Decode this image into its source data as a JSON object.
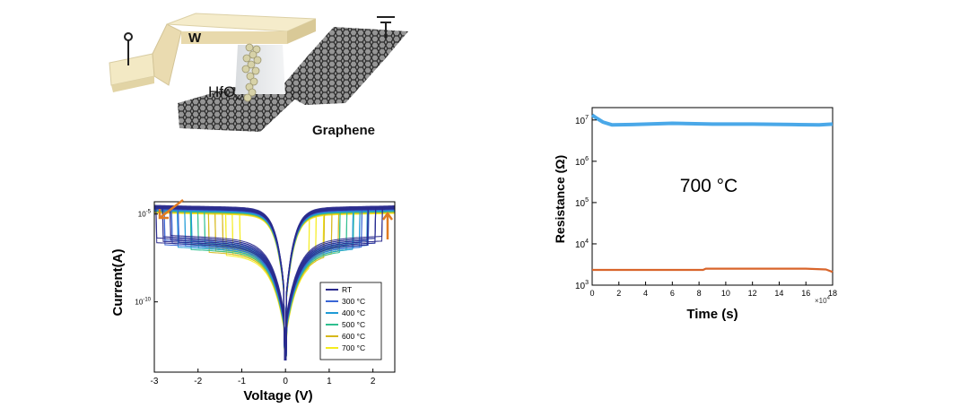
{
  "device": {
    "electrode_label": "W",
    "oxide_label": "HfO",
    "oxide_subscript": "x",
    "channel_label": "Graphene"
  },
  "chart_data": [
    {
      "type": "line",
      "xlabel": "Voltage (V)",
      "ylabel": "Current(A)",
      "xlim": [
        -3,
        2.5
      ],
      "ylim": [
        -14,
        -4.3
      ],
      "y_scale": "log",
      "x_ticks": [
        -3,
        -2,
        -1,
        0,
        1,
        2
      ],
      "y_ticks": [
        {
          "base": "10",
          "exp": "-5",
          "value": -5
        },
        {
          "base": "10",
          "exp": "-10",
          "value": -10
        }
      ],
      "legend": {
        "position": "bottom-right"
      },
      "series": [
        {
          "name": "RT",
          "color": "#2a2a8c",
          "low_log": -6.4,
          "high_log": -4.6,
          "neg_set": -2.8,
          "pos_set": 2.05
        },
        {
          "name": "300 °C",
          "color": "#3a66d6",
          "low_log": -6.5,
          "high_log": -4.65,
          "neg_set": -2.6,
          "pos_set": 1.9
        },
        {
          "name": "400 °C",
          "color": "#1f9bd6",
          "low_log": -6.6,
          "high_log": -4.7,
          "neg_set": -2.3,
          "pos_set": 1.7
        },
        {
          "name": "500 °C",
          "color": "#2fbf8f",
          "low_log": -6.7,
          "high_log": -4.75,
          "neg_set": -2.0,
          "pos_set": 1.4
        },
        {
          "name": "600 °C",
          "color": "#d6b81a",
          "low_log": -6.8,
          "high_log": -4.8,
          "neg_set": -1.6,
          "pos_set": 1.05
        },
        {
          "name": "700 °C",
          "color": "#f5ec1e",
          "low_log": -6.9,
          "high_log": -4.85,
          "neg_set": -1.2,
          "pos_set": 0.7
        }
      ]
    },
    {
      "type": "line",
      "xlabel": "Time (s)",
      "ylabel": "Resistance (Ω)",
      "annotation": "700 °C",
      "x_multiplier": {
        "base": "×10",
        "exp": "4"
      },
      "xlim": [
        0,
        18
      ],
      "ylim": [
        3,
        7.3
      ],
      "y_scale": "log",
      "x_ticks": [
        0,
        2,
        4,
        6,
        8,
        10,
        12,
        14,
        16,
        18
      ],
      "y_ticks": [
        {
          "base": "10",
          "exp": "3",
          "value": 3
        },
        {
          "base": "10",
          "exp": "4",
          "value": 4
        },
        {
          "base": "10",
          "exp": "5",
          "value": 5
        },
        {
          "base": "10",
          "exp": "6",
          "value": 6
        },
        {
          "base": "10",
          "exp": "7",
          "value": 7
        }
      ],
      "series": [
        {
          "state": "high",
          "color": "#4aa8e8",
          "x": [
            0,
            0.3,
            0.8,
            1.5,
            3,
            6,
            9,
            12,
            15,
            17,
            18
          ],
          "log_y": [
            7.12,
            7.05,
            6.95,
            6.88,
            6.89,
            6.92,
            6.9,
            6.9,
            6.89,
            6.88,
            6.9
          ]
        },
        {
          "state": "low",
          "color": "#d9652b",
          "x": [
            0,
            4,
            8.3,
            8.5,
            12,
            16,
            17.5,
            18
          ],
          "log_y": [
            3.37,
            3.37,
            3.37,
            3.4,
            3.4,
            3.4,
            3.38,
            3.32
          ]
        }
      ]
    }
  ]
}
